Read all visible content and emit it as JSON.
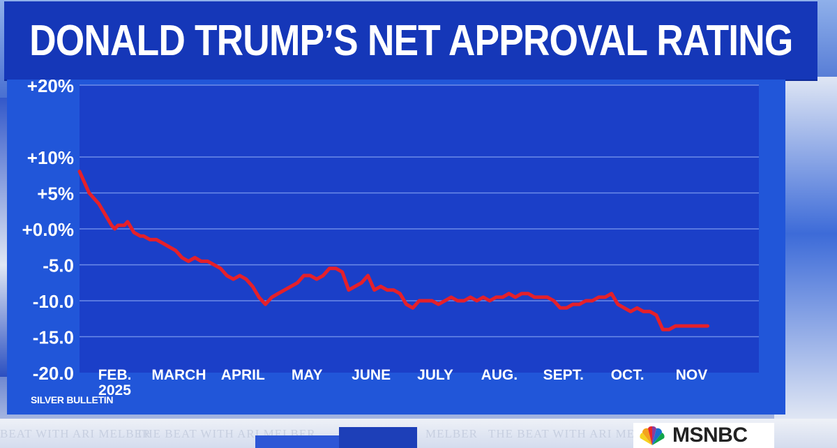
{
  "title": "DONALD TRUMP’S NET APPROVAL RATING",
  "source": "SILVER BULLETIN",
  "ticker": {
    "text": "BEAT WITH ARI MELBER",
    "text_full": "THE BEAT WITH ARI MELBER",
    "text_partial": "MELBER"
  },
  "network": {
    "name": "MSNBC",
    "logo_icon": "peacock-icon"
  },
  "colors": {
    "title_bg": "#1537b8",
    "plot_bg": "#1b3fc8",
    "panel_bg": "#2156d9",
    "gridline": "#6d8ce8",
    "line": "#e5202a",
    "text": "#ffffff"
  },
  "chart_data": {
    "type": "line",
    "title": "DONALD TRUMP’S NET APPROVAL RATING",
    "xlabel": "",
    "ylabel": "",
    "ylim": [
      -20,
      20
    ],
    "y_ticks": [
      {
        "value": 20,
        "label": "+20%"
      },
      {
        "value": 10,
        "label": "+10%"
      },
      {
        "value": 5,
        "label": "+5%"
      },
      {
        "value": 0,
        "label": "+0.0%"
      },
      {
        "value": -5,
        "label": "-5.0"
      },
      {
        "value": -10,
        "label": "-10.0"
      },
      {
        "value": -15,
        "label": "-15.0"
      },
      {
        "value": -20,
        "label": "-20.0"
      }
    ],
    "x_range": [
      0,
      10.6
    ],
    "x_ticks": [
      {
        "value": 0.55,
        "label": "FEB.",
        "sublabel": "2025"
      },
      {
        "value": 1.55,
        "label": "MARCH"
      },
      {
        "value": 2.55,
        "label": "APRIL"
      },
      {
        "value": 3.55,
        "label": "MAY"
      },
      {
        "value": 4.55,
        "label": "JUNE"
      },
      {
        "value": 5.55,
        "label": "JULY"
      },
      {
        "value": 6.55,
        "label": "AUG."
      },
      {
        "value": 7.55,
        "label": "SEPT."
      },
      {
        "value": 8.55,
        "label": "OCT."
      },
      {
        "value": 9.55,
        "label": "NOV"
      }
    ],
    "grid": true,
    "series": [
      {
        "name": "Net approval",
        "x": [
          0.0,
          0.1,
          0.15,
          0.25,
          0.3,
          0.4,
          0.5,
          0.55,
          0.6,
          0.7,
          0.75,
          0.85,
          0.95,
          1.0,
          1.1,
          1.2,
          1.3,
          1.4,
          1.5,
          1.6,
          1.7,
          1.8,
          1.9,
          2.0,
          2.1,
          2.2,
          2.3,
          2.4,
          2.5,
          2.6,
          2.7,
          2.8,
          2.9,
          3.0,
          3.1,
          3.2,
          3.3,
          3.4,
          3.5,
          3.6,
          3.7,
          3.8,
          3.9,
          4.0,
          4.1,
          4.2,
          4.3,
          4.4,
          4.5,
          4.6,
          4.7,
          4.8,
          4.9,
          5.0,
          5.1,
          5.2,
          5.3,
          5.4,
          5.5,
          5.6,
          5.7,
          5.8,
          5.9,
          6.0,
          6.1,
          6.2,
          6.3,
          6.4,
          6.5,
          6.6,
          6.7,
          6.8,
          6.9,
          7.0,
          7.1,
          7.2,
          7.3,
          7.4,
          7.5,
          7.6,
          7.7,
          7.8,
          7.9,
          8.0,
          8.1,
          8.2,
          8.3,
          8.4,
          8.5,
          8.6,
          8.7,
          8.8,
          8.9,
          9.0,
          9.1,
          9.2,
          9.3,
          9.4,
          9.5,
          9.6,
          9.7,
          9.8
        ],
        "values": [
          8.0,
          6.0,
          5.0,
          4.0,
          3.5,
          2.0,
          0.5,
          0.0,
          0.5,
          0.5,
          1.0,
          -0.5,
          -1.0,
          -1.0,
          -1.5,
          -1.5,
          -2.0,
          -2.5,
          -3.0,
          -4.0,
          -4.5,
          -4.0,
          -4.5,
          -4.5,
          -5.0,
          -5.5,
          -6.5,
          -7.0,
          -6.5,
          -7.0,
          -8.0,
          -9.5,
          -10.5,
          -9.5,
          -9.0,
          -8.5,
          -8.0,
          -7.5,
          -6.5,
          -6.5,
          -7.0,
          -6.5,
          -5.5,
          -5.5,
          -6.0,
          -8.5,
          -8.0,
          -7.5,
          -6.5,
          -8.5,
          -8.0,
          -8.5,
          -8.5,
          -9.0,
          -10.5,
          -11.0,
          -10.0,
          -10.0,
          -10.0,
          -10.5,
          -10.0,
          -9.5,
          -10.0,
          -10.0,
          -9.5,
          -10.0,
          -9.5,
          -10.0,
          -9.5,
          -9.5,
          -9.0,
          -9.5,
          -9.0,
          -9.0,
          -9.5,
          -9.5,
          -9.5,
          -10.0,
          -11.0,
          -11.0,
          -10.5,
          -10.5,
          -10.0,
          -10.0,
          -9.5,
          -9.5,
          -9.0,
          -10.5,
          -11.0,
          -11.5,
          -11.0,
          -11.5,
          -11.5,
          -12.0,
          -14.0,
          -14.0,
          -13.5,
          -13.5,
          -13.5,
          -13.5,
          -13.5,
          -13.5
        ]
      }
    ]
  }
}
